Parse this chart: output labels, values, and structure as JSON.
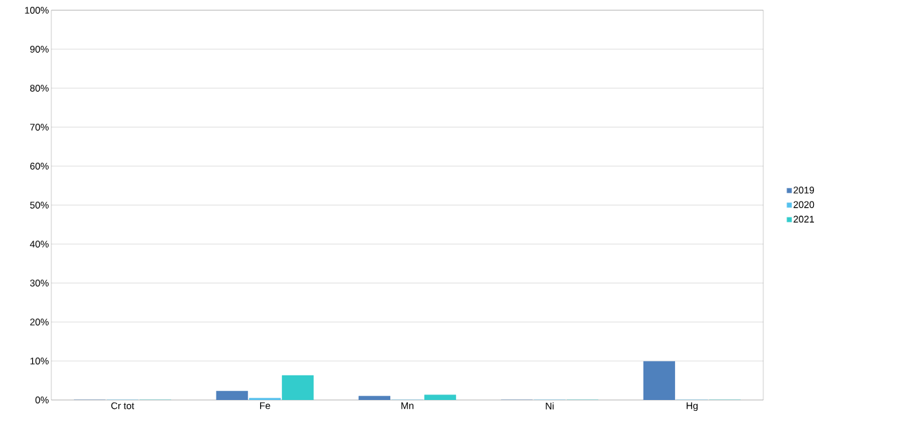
{
  "chart_data": {
    "type": "bar",
    "categories": [
      "Cr tot",
      "Fe",
      "Mn",
      "Ni",
      "Hg"
    ],
    "series": [
      {
        "name": "2019",
        "color": "#4f81bd",
        "values": [
          0,
          2.3,
          1,
          0,
          9.9
        ]
      },
      {
        "name": "2020",
        "color": "#56c1ee",
        "values": [
          0,
          0.5,
          0,
          0,
          0
        ]
      },
      {
        "name": "2021",
        "color": "#33cccc",
        "values": [
          0,
          6.3,
          1.3,
          0,
          0
        ]
      }
    ],
    "ylim": [
      0,
      100
    ],
    "yticks": [
      {
        "value": 0,
        "label": "0%"
      },
      {
        "value": 10,
        "label": "10%"
      },
      {
        "value": 20,
        "label": "20%"
      },
      {
        "value": 30,
        "label": "30%"
      },
      {
        "value": 40,
        "label": "40%"
      },
      {
        "value": 50,
        "label": "50%"
      },
      {
        "value": 60,
        "label": "60%"
      },
      {
        "value": 70,
        "label": "70%"
      },
      {
        "value": 80,
        "label": "80%"
      },
      {
        "value": 90,
        "label": "90%"
      },
      {
        "value": 100,
        "label": "100%"
      }
    ],
    "grid": "y",
    "legend": "right"
  }
}
